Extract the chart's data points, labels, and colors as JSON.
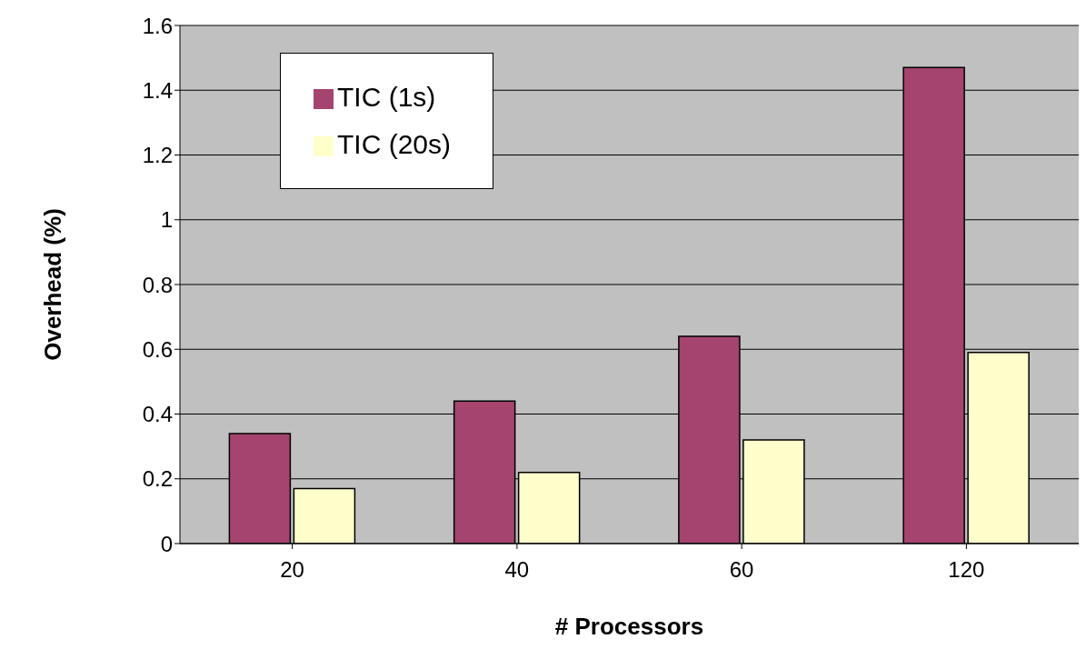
{
  "chart_data": {
    "type": "bar",
    "xlabel": "# Processors",
    "ylabel": "Overhead (%)",
    "categories": [
      "20",
      "40",
      "60",
      "120"
    ],
    "series": [
      {
        "name": "TIC (1s)",
        "color": "#a5446f",
        "values": [
          0.34,
          0.44,
          0.64,
          1.47
        ]
      },
      {
        "name": "TIC (20s)",
        "color": "#ffffcc",
        "values": [
          0.17,
          0.22,
          0.32,
          0.59
        ]
      }
    ],
    "ylim": [
      0,
      1.6
    ],
    "yticks": [
      0,
      0.2,
      0.4,
      0.6,
      0.8,
      1,
      1.2,
      1.4,
      1.6
    ],
    "grid": "y",
    "legend": "top left"
  }
}
